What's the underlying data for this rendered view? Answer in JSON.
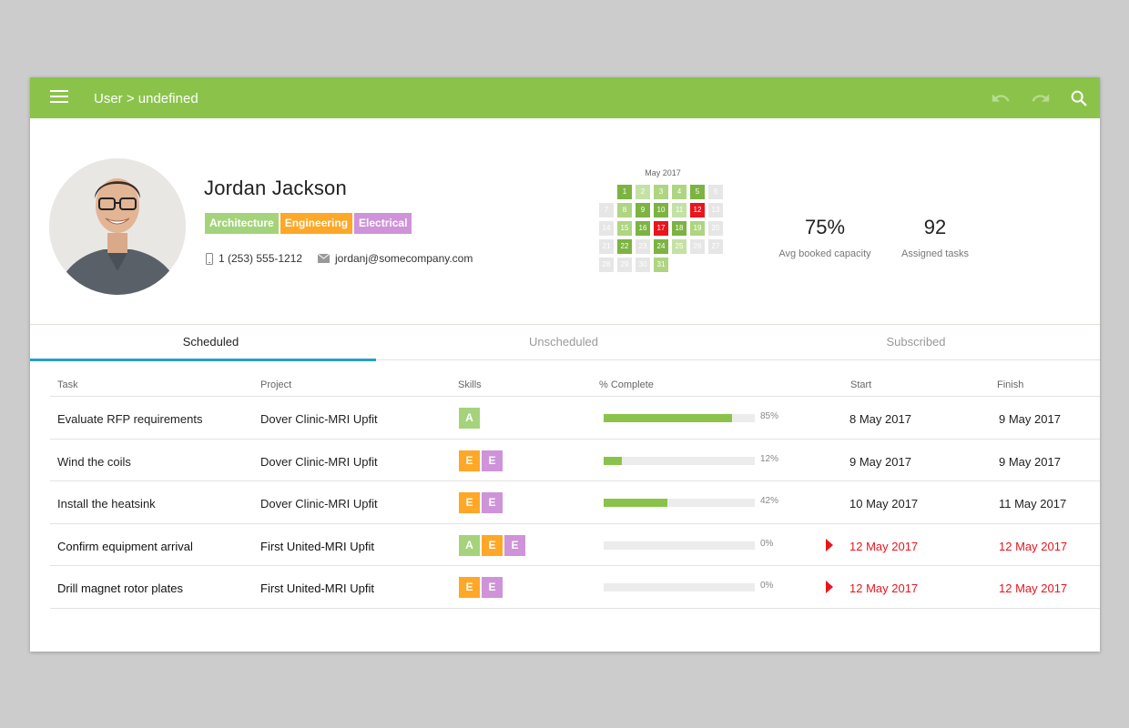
{
  "appbar": {
    "breadcrumb": "User > undefined",
    "icons": [
      "menu-icon",
      "undo-icon",
      "redo-icon",
      "search-icon"
    ]
  },
  "user": {
    "name": "Jordan Jackson",
    "skills": [
      {
        "label": "Architecture",
        "color": "#a5d37c"
      },
      {
        "label": "Engineering",
        "color": "#ffa726"
      },
      {
        "label": "Electrical",
        "color": "#ce93d8"
      }
    ],
    "phone": "1 (253) 555-1212",
    "email": "jordanj@somecompany.com"
  },
  "calendar": {
    "title": "May 2017",
    "leading_blank_days": 1,
    "days": [
      {
        "d": "1",
        "c": "#7cb342"
      },
      {
        "d": "2",
        "c": "#c5e1a5"
      },
      {
        "d": "3",
        "c": "#aed581"
      },
      {
        "d": "4",
        "c": "#aed581"
      },
      {
        "d": "5",
        "c": "#7cb342"
      },
      {
        "d": "6",
        "c": "#e6e6e6"
      },
      {
        "d": "7",
        "c": "#e6e6e6"
      },
      {
        "d": "8",
        "c": "#aed581"
      },
      {
        "d": "9",
        "c": "#7cb342"
      },
      {
        "d": "10",
        "c": "#7cb342"
      },
      {
        "d": "11",
        "c": "#c5e1a5"
      },
      {
        "d": "12",
        "c": "#e8151e"
      },
      {
        "d": "13",
        "c": "#e6e6e6"
      },
      {
        "d": "14",
        "c": "#e6e6e6"
      },
      {
        "d": "15",
        "c": "#aed581"
      },
      {
        "d": "16",
        "c": "#7cb342"
      },
      {
        "d": "17",
        "c": "#e8151e"
      },
      {
        "d": "18",
        "c": "#7cb342"
      },
      {
        "d": "19",
        "c": "#aed581"
      },
      {
        "d": "20",
        "c": "#e6e6e6"
      },
      {
        "d": "21",
        "c": "#e6e6e6"
      },
      {
        "d": "22",
        "c": "#7cb342"
      },
      {
        "d": "23",
        "c": "#e6e6e6"
      },
      {
        "d": "24",
        "c": "#7cb342"
      },
      {
        "d": "25",
        "c": "#c5e1a5"
      },
      {
        "d": "26",
        "c": "#e6e6e6"
      },
      {
        "d": "27",
        "c": "#e6e6e6"
      },
      {
        "d": "28",
        "c": "#e6e6e6"
      },
      {
        "d": "29",
        "c": "#e6e6e6"
      },
      {
        "d": "30",
        "c": "#e6e6e6"
      },
      {
        "d": "31",
        "c": "#aed581"
      }
    ]
  },
  "stats": [
    {
      "value": "75%",
      "label": "Avg booked capacity"
    },
    {
      "value": "92",
      "label": "Assigned tasks"
    }
  ],
  "tabs": [
    {
      "label": "Scheduled",
      "active": true
    },
    {
      "label": "Unscheduled",
      "active": false
    },
    {
      "label": "Subscribed",
      "active": false
    }
  ],
  "table": {
    "columns": [
      "Task",
      "Project",
      "Skills",
      "% Complete",
      "Start",
      "Finish"
    ],
    "skill_colors": {
      "A": "#a5d37c",
      "E": "#ffa726",
      "E2": "#ce93d8"
    },
    "rows": [
      {
        "task": "Evaluate RFP requirements",
        "project": "Dover Clinic-MRI Upfit",
        "skills": [
          "A"
        ],
        "complete": 85,
        "complete_label": "85%",
        "start": "8 May 2017",
        "finish": "9 May 2017",
        "late": false
      },
      {
        "task": "Wind the coils",
        "project": "Dover Clinic-MRI Upfit",
        "skills": [
          "E",
          "E2"
        ],
        "complete": 12,
        "complete_label": "12%",
        "start": "9 May 2017",
        "finish": "9 May 2017",
        "late": false
      },
      {
        "task": "Install the heatsink",
        "project": "Dover Clinic-MRI Upfit",
        "skills": [
          "E",
          "E2"
        ],
        "complete": 42,
        "complete_label": "42%",
        "start": "10 May 2017",
        "finish": "11 May 2017",
        "late": false
      },
      {
        "task": "Confirm equipment arrival",
        "project": "First United-MRI Upfit",
        "skills": [
          "A",
          "E",
          "E2"
        ],
        "complete": 0,
        "complete_label": "0%",
        "start": "12 May 2017",
        "finish": "12 May 2017",
        "late": true
      },
      {
        "task": "Drill magnet rotor plates",
        "project": "First United-MRI Upfit",
        "skills": [
          "E",
          "E2"
        ],
        "complete": 0,
        "complete_label": "0%",
        "start": "12 May 2017",
        "finish": "12 May 2017",
        "late": true
      }
    ]
  }
}
